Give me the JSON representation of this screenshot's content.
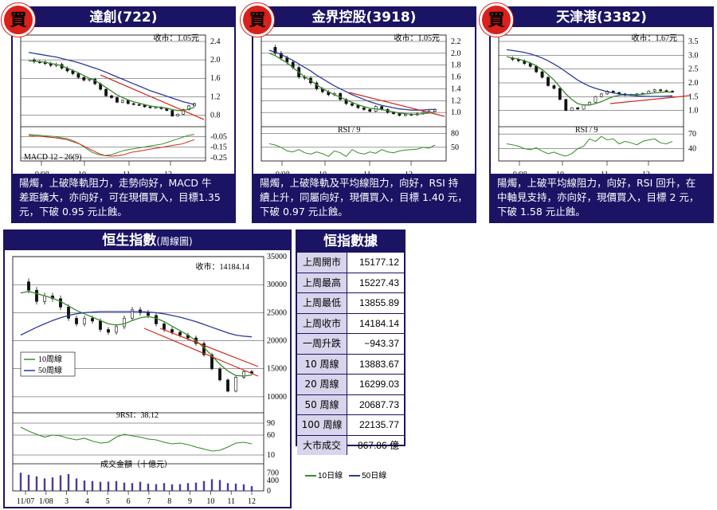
{
  "charts": [
    {
      "id": "p1",
      "buy": "買",
      "title": "達創(722)",
      "price_label": "收市：1.05元",
      "indicator_label": "MACD 12 - 26(9)",
      "desc": [
        "陽燭，上破降軌阻力，走勢向好，MACD 牛",
        "差距擴大，亦向好，可在現價買入，目標1.35",
        "元，下破 0.95 元止蝕。"
      ]
    },
    {
      "id": "p2",
      "buy": "買",
      "title": "金界控股(3918)",
      "price_label": "收市：1.05元",
      "indicator_label": "RSI / 9",
      "desc": [
        "陽燭，上破降軌及平均線阻力，向好，RSI 持",
        "續上升，同屬向好，現價買入，目標 1.40 元，",
        "下破 0.97 元止蝕。"
      ]
    },
    {
      "id": "p3",
      "buy": "買",
      "title": "天津港(3382)",
      "price_label": "收市：1.67元",
      "indicator_label": "RSI / 9",
      "desc": [
        "陽燭，上破平均線阻力，向好，RSI 回升，在",
        "中軸見支持，亦向好，現價買入，目標 2 元，",
        "下破 1.58 元止蝕。"
      ]
    },
    {
      "id": "p4",
      "title": "恒生指數",
      "title_sub": "(周線圖)",
      "price_label": "收市：14184.14",
      "indicator_label": "9RSI：38.12",
      "volume_label": "成交金額（十億元）",
      "legend": [
        "10周線",
        "50周線"
      ]
    }
  ],
  "chart_data": [
    {
      "type": "line",
      "title": "達創(722)",
      "x_ticks": [
        "9/08",
        "10",
        "11",
        "12"
      ],
      "price_ticks": [
        "2.4",
        "2.0",
        "1.6",
        "1.2",
        "0.8"
      ],
      "price_ylim": [
        0.6,
        2.4
      ],
      "ind_ticks": [
        "-0.05",
        "-0.15",
        "-0.25"
      ],
      "ind_ylim": [
        -0.28,
        0.02
      ],
      "series": [
        {
          "name": "close",
          "color": "#222",
          "values": [
            2.0,
            1.96,
            1.95,
            1.92,
            1.88,
            1.9,
            1.82,
            1.76,
            1.7,
            1.62,
            1.56,
            1.58,
            1.48,
            1.36,
            1.22,
            1.18,
            1.08,
            1.12,
            1.05,
            1.03,
            1.02,
            0.98,
            0.96,
            0.97,
            0.94,
            0.9,
            0.78,
            0.82,
            0.92,
            1.0,
            1.05
          ]
        },
        {
          "name": "ma10",
          "color": "#3a8a2e",
          "values": [
            1.98,
            1.97,
            1.96,
            1.95,
            1.92,
            1.9,
            1.87,
            1.82,
            1.77,
            1.72,
            1.66,
            1.6,
            1.55,
            1.48,
            1.4,
            1.32,
            1.24,
            1.18,
            1.13,
            1.09,
            1.06,
            1.03,
            1.0,
            0.98,
            0.97,
            0.95,
            0.92,
            0.9,
            0.9,
            0.93,
            0.97
          ]
        },
        {
          "name": "ma50",
          "color": "#2c3a9e",
          "values": [
            2.16,
            2.14,
            2.12,
            2.1,
            2.08,
            2.06,
            2.03,
            2.0,
            1.97,
            1.94,
            1.9,
            1.86,
            1.82,
            1.78,
            1.73,
            1.68,
            1.63,
            1.58,
            1.53,
            1.48,
            1.43,
            1.38,
            1.33,
            1.29,
            1.25,
            1.21,
            1.17,
            1.13,
            1.09,
            1.06,
            1.03
          ]
        },
        {
          "name": "ind_a",
          "color": "#3a8a2e",
          "panel": "ind",
          "values": [
            -0.03,
            -0.035,
            -0.04,
            -0.045,
            -0.05,
            -0.06,
            -0.07,
            -0.09,
            -0.12,
            -0.16,
            -0.2,
            -0.22,
            -0.23,
            -0.22,
            -0.2,
            -0.18,
            -0.17,
            -0.16,
            -0.15,
            -0.14,
            -0.13,
            -0.12,
            -0.1,
            -0.08,
            -0.06,
            -0.04,
            -0.03
          ]
        },
        {
          "name": "ind_b",
          "color": "#d0281c",
          "panel": "ind",
          "values": [
            -0.04,
            -0.045,
            -0.05,
            -0.055,
            -0.06,
            -0.07,
            -0.08,
            -0.1,
            -0.12,
            -0.15,
            -0.18,
            -0.21,
            -0.23,
            -0.235,
            -0.23,
            -0.22,
            -0.2,
            -0.19,
            -0.18,
            -0.17,
            -0.16,
            -0.15,
            -0.14,
            -0.13,
            -0.12,
            -0.1,
            -0.08
          ]
        }
      ]
    },
    {
      "type": "line",
      "title": "金界控股(3918)",
      "x_ticks": [
        "9/08",
        "10",
        "11",
        "12"
      ],
      "price_ticks": [
        "2.2",
        "2.0",
        "1.8",
        "1.6",
        "1.4",
        "1.2",
        "1.0"
      ],
      "price_ylim": [
        0.8,
        2.2
      ],
      "ind_ticks": [
        "80",
        "50"
      ],
      "ind_ylim": [
        20,
        90
      ],
      "series": [
        {
          "name": "close",
          "color": "#222",
          "values": [
            2.1,
            2.0,
            1.92,
            1.85,
            1.76,
            1.6,
            1.58,
            1.5,
            1.4,
            1.35,
            1.3,
            1.32,
            1.22,
            1.15,
            1.12,
            1.08,
            1.05,
            1.02,
            1.1,
            1.05,
            1.0,
            0.98,
            0.95,
            0.97,
            0.96,
            0.98,
            1.0,
            1.02,
            1.05
          ]
        },
        {
          "name": "ma10",
          "color": "#3a8a2e",
          "values": [
            2.0,
            1.96,
            1.9,
            1.84,
            1.76,
            1.68,
            1.6,
            1.54,
            1.47,
            1.4,
            1.35,
            1.3,
            1.26,
            1.21,
            1.17,
            1.13,
            1.1,
            1.07,
            1.06,
            1.05,
            1.03,
            1.01,
            0.99,
            0.98,
            0.97,
            0.97,
            0.98,
            0.99,
            1.01
          ]
        },
        {
          "name": "ma50",
          "color": "#2c3a9e",
          "values": [
            2.05,
            2.02,
            1.98,
            1.93,
            1.88,
            1.82,
            1.76,
            1.7,
            1.63,
            1.57,
            1.51,
            1.45,
            1.4,
            1.35,
            1.3,
            1.26,
            1.22,
            1.18,
            1.15,
            1.12,
            1.1,
            1.08,
            1.06,
            1.05,
            1.04,
            1.04,
            1.04,
            1.05,
            1.05
          ]
        },
        {
          "name": "ind_a",
          "color": "#3a8a2e",
          "panel": "ind",
          "values": [
            58,
            55,
            50,
            42,
            40,
            45,
            38,
            35,
            40,
            36,
            30,
            42,
            38,
            30,
            45,
            38,
            35,
            40,
            37,
            45,
            40,
            38,
            42,
            44,
            45,
            46,
            50,
            48,
            55
          ]
        }
      ]
    },
    {
      "type": "line",
      "title": "天津港(3382)",
      "x_ticks": [
        "9/08",
        "10",
        "11",
        "12"
      ],
      "price_ticks": [
        "3.5",
        "3.0",
        "2.5",
        "2.0",
        "1.5",
        "1.0"
      ],
      "price_ylim": [
        0.5,
        3.5
      ],
      "ind_ticks": [
        "70",
        "40"
      ],
      "ind_ylim": [
        15,
        80
      ],
      "series": [
        {
          "name": "close",
          "color": "#222",
          "values": [
            2.9,
            2.85,
            2.8,
            2.7,
            2.6,
            2.4,
            2.2,
            1.9,
            1.8,
            1.4,
            1.0,
            1.1,
            1.05,
            1.2,
            1.3,
            1.5,
            1.6,
            1.7,
            1.65,
            1.6,
            1.55,
            1.58,
            1.6,
            1.62,
            1.7,
            1.75,
            1.72,
            1.7,
            1.67
          ]
        },
        {
          "name": "ma10",
          "color": "#3a8a2e",
          "values": [
            2.95,
            2.9,
            2.86,
            2.8,
            2.72,
            2.62,
            2.48,
            2.3,
            2.1,
            1.85,
            1.6,
            1.4,
            1.25,
            1.2,
            1.2,
            1.25,
            1.32,
            1.42,
            1.5,
            1.55,
            1.57,
            1.58,
            1.58,
            1.59,
            1.61,
            1.64,
            1.66,
            1.67,
            1.66
          ]
        },
        {
          "name": "ma50",
          "color": "#2c3a9e",
          "values": [
            3.2,
            3.17,
            3.14,
            3.1,
            3.05,
            2.98,
            2.9,
            2.8,
            2.68,
            2.55,
            2.4,
            2.25,
            2.1,
            1.98,
            1.88,
            1.8,
            1.74,
            1.68,
            1.64,
            1.6,
            1.57,
            1.55,
            1.53,
            1.52,
            1.51,
            1.51,
            1.51,
            1.52,
            1.53
          ]
        },
        {
          "name": "ind_a",
          "color": "#3a8a2e",
          "panel": "ind",
          "values": [
            50,
            48,
            45,
            40,
            38,
            42,
            35,
            30,
            33,
            28,
            25,
            30,
            40,
            45,
            60,
            55,
            65,
            58,
            60,
            50,
            55,
            52,
            48,
            55,
            58,
            60,
            52,
            50,
            55
          ]
        }
      ]
    },
    {
      "type": "line",
      "title": "恒生指數",
      "x_ticks": [
        "11/07",
        "1/08",
        "3",
        "4",
        "5",
        "6",
        "7",
        "8",
        "9",
        "10",
        "11",
        "12"
      ],
      "price_ticks": [
        "35000",
        "30000",
        "25000",
        "20000",
        "15000",
        "10000"
      ],
      "price_ylim": [
        8000,
        35000
      ],
      "ind_ticks": [
        "90",
        "60",
        "10"
      ],
      "ind_ylim": [
        0,
        100
      ],
      "vol_ticks": [
        "700",
        "400",
        "0"
      ],
      "vol_ylim": [
        0,
        800
      ],
      "series": [
        {
          "name": "close",
          "color": "#222",
          "values": [
            30500,
            29000,
            27000,
            28000,
            27500,
            26000,
            24000,
            23000,
            24000,
            23500,
            22000,
            21500,
            22500,
            24000,
            25500,
            25000,
            24500,
            23000,
            22000,
            21500,
            21000,
            20500,
            19500,
            17500,
            15000,
            13000,
            11000,
            13500,
            14500,
            14184
          ]
        },
        {
          "name": "10周線",
          "color": "#3a8a2e",
          "values": [
            28500,
            28800,
            28400,
            28000,
            27600,
            27000,
            26200,
            25400,
            24800,
            24200,
            23600,
            23000,
            22800,
            23000,
            23600,
            24100,
            24300,
            24000,
            23400,
            22600,
            21800,
            21000,
            20000,
            18800,
            17300,
            15800,
            14600,
            13800,
            13700,
            13884
          ]
        },
        {
          "name": "50周線",
          "color": "#2c3a9e",
          "values": [
            21000,
            21700,
            22400,
            23000,
            23600,
            24100,
            24500,
            24800,
            25000,
            25100,
            25200,
            25200,
            25200,
            25200,
            25200,
            25200,
            25100,
            25000,
            24800,
            24500,
            24200,
            23800,
            23400,
            22900,
            22400,
            21900,
            21400,
            21000,
            20800,
            20688
          ]
        },
        {
          "name": "rsi",
          "color": "#3a8a2e",
          "panel": "ind",
          "values": [
            80,
            70,
            62,
            55,
            60,
            58,
            52,
            48,
            52,
            45,
            40,
            42,
            55,
            62,
            58,
            55,
            50,
            48,
            42,
            38,
            40,
            36,
            30,
            25,
            20,
            22,
            30,
            40,
            42,
            38
          ]
        },
        {
          "name": "volume",
          "panel": "vol",
          "values": [
            700,
            620,
            560,
            480,
            520,
            600,
            650,
            480,
            400,
            380,
            350,
            360,
            380,
            320,
            300,
            350,
            280,
            260,
            300,
            250,
            260,
            300,
            320,
            380,
            450,
            420,
            300,
            280,
            250,
            180
          ]
        }
      ]
    }
  ],
  "stats": {
    "title": "恒指數據",
    "rows": [
      {
        "k": "上周開市",
        "v": "15177.12"
      },
      {
        "k": "上周最高",
        "v": "15227.43"
      },
      {
        "k": "上周最低",
        "v": "13855.89"
      },
      {
        "k": "上周收市",
        "v": "14184.14"
      },
      {
        "k": "一周升跌",
        "v": "−943.37"
      },
      {
        "k": "10 周線",
        "v": "13883.67"
      },
      {
        "k": "20 周線",
        "v": "16299.03"
      },
      {
        "k": "50 周線",
        "v": "20687.73"
      },
      {
        "k": "100 周線",
        "v": "22135.77"
      },
      {
        "k": "大市成交",
        "v": "867.86 億"
      }
    ]
  },
  "legend2": [
    "10日線",
    "50日線"
  ]
}
